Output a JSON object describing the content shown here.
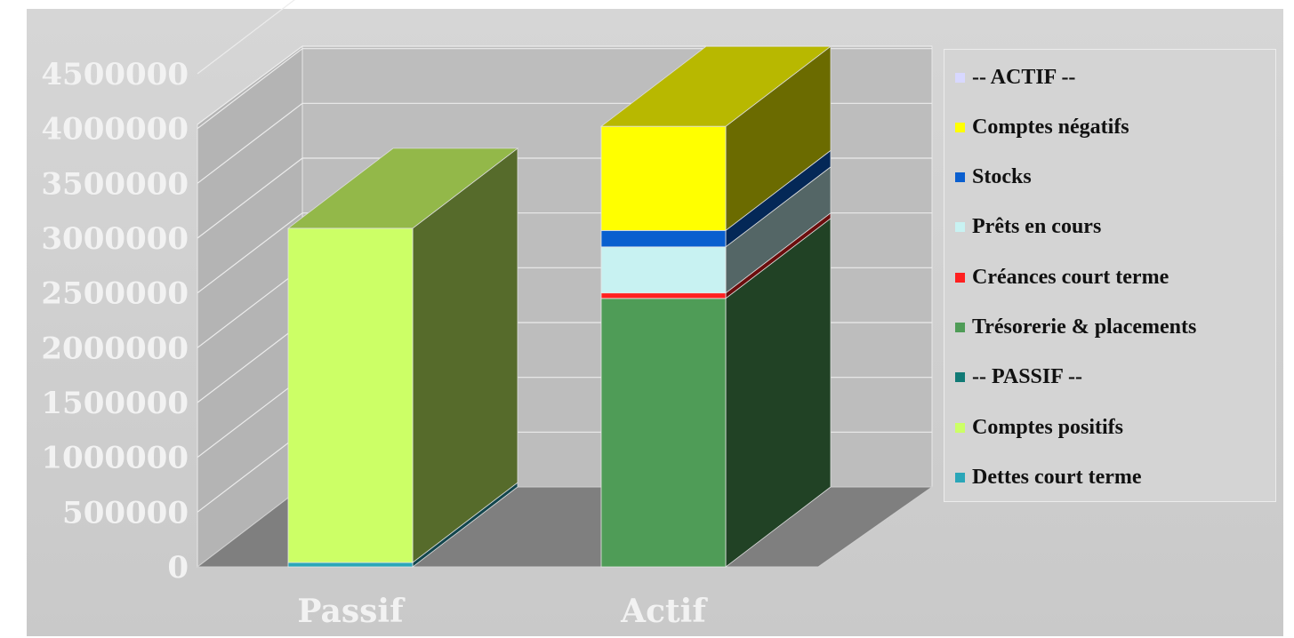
{
  "chart_data": {
    "type": "bar",
    "stacked": true,
    "three_d": true,
    "categories": [
      "Passif",
      "Actif"
    ],
    "ylim": [
      0,
      4500000
    ],
    "yticks": [
      "0",
      "500000",
      "1000000",
      "1500000",
      "2000000",
      "2500000",
      "3000000",
      "3500000",
      "4000000",
      "4500000"
    ],
    "grid": true,
    "legend_position": "right",
    "series": [
      {
        "name": "Dettes court terme",
        "color": "#2aa6b8",
        "values": [
          40000,
          0
        ]
      },
      {
        "name": "Comptes positifs",
        "color": "#ccff66",
        "values": [
          3050000,
          0
        ]
      },
      {
        "name": "-- PASSIF --",
        "color": "#117a76",
        "values": [
          0,
          0
        ]
      },
      {
        "name": "Trésorerie & placements",
        "color": "#4f9c57",
        "values": [
          0,
          2450000
        ]
      },
      {
        "name": "Créances court terme",
        "color": "#ff2020",
        "values": [
          0,
          50000
        ]
      },
      {
        "name": "Prêts en cours",
        "color": "#c8f2f2",
        "values": [
          0,
          420000
        ]
      },
      {
        "name": "Stocks",
        "color": "#0a5fcf",
        "values": [
          0,
          150000
        ]
      },
      {
        "name": "Comptes négatifs",
        "color": "#ffff00",
        "values": [
          0,
          950000
        ]
      },
      {
        "name": "-- ACTIF --",
        "color": "#d8d8ff",
        "values": [
          0,
          0
        ]
      }
    ],
    "legend_order": [
      "-- ACTIF --",
      "Comptes négatifs",
      "Stocks",
      "Prêts en cours",
      "Créances court terme",
      "Trésorerie & placements",
      "-- PASSIF --",
      "Comptes positifs",
      "Dettes court terme"
    ]
  }
}
